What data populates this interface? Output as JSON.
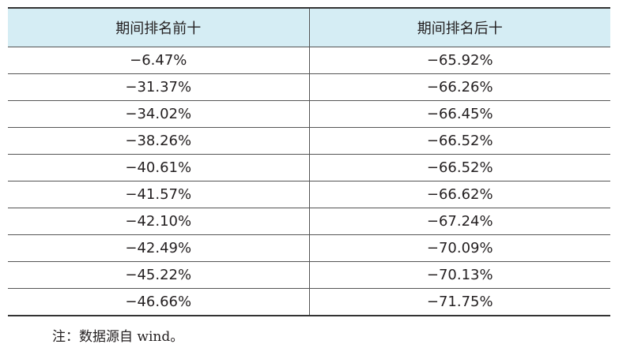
{
  "table": {
    "headers": [
      "期间排名前十",
      "期间排名后十"
    ],
    "rows": [
      [
        "−6.47%",
        "−65.92%"
      ],
      [
        "−31.37%",
        "−66.26%"
      ],
      [
        "−34.02%",
        "−66.45%"
      ],
      [
        "−38.26%",
        "−66.52%"
      ],
      [
        "−40.61%",
        "−66.52%"
      ],
      [
        "−41.57%",
        "−66.62%"
      ],
      [
        "−42.10%",
        "−67.24%"
      ],
      [
        "−42.49%",
        "−70.09%"
      ],
      [
        "−45.22%",
        "−70.13%"
      ],
      [
        "−46.66%",
        "−71.75%"
      ]
    ]
  },
  "note": "注：数据源自 wind。"
}
